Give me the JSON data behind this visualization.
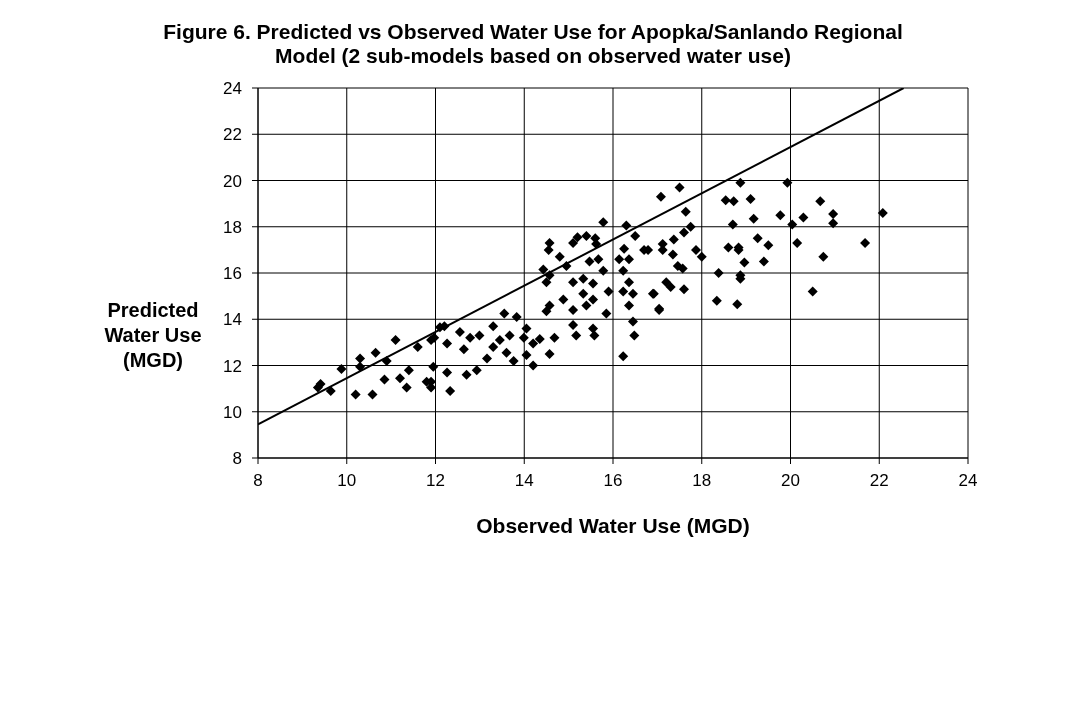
{
  "chart_data": {
    "type": "scatter",
    "title": "Figure 6. Predicted vs Observed Water Use for Apopka/Sanlando Regional Model (2 sub-models based on observed water use)",
    "xlabel": "Observed Water Use (MGD)",
    "ylabel": "Predicted Water Use (MGD)",
    "xlim": [
      8,
      24
    ],
    "xticks": [
      8,
      10,
      12,
      14,
      16,
      18,
      20,
      22,
      24
    ],
    "ylim": [
      8,
      24
    ],
    "yticks": [
      8,
      10,
      12,
      14,
      16,
      18,
      20,
      22,
      24
    ],
    "grid": true,
    "legend": false,
    "marker": "diamond",
    "series": [
      {
        "color": "#000000",
        "x": [
          9.41,
          9.64,
          9.35,
          9.88,
          10.2,
          10.58,
          10.3,
          10.3,
          10.65,
          10.85,
          10.9,
          11.1,
          11.2,
          11.35,
          11.4,
          11.6,
          11.8,
          11.9,
          11.95,
          11.9,
          12.1,
          15.78,
          16.3,
          16.5,
          14.57,
          14.55,
          15.2,
          15.1,
          15.4,
          15.6,
          15.62,
          16.25,
          16.7,
          14.8,
          14.95,
          15.47,
          15.67,
          16.14,
          16.36,
          14.43,
          14.57,
          15.78,
          16.23,
          14.5,
          15.1,
          15.33,
          15.55,
          15.9,
          16.36,
          16.45,
          16.23,
          16.9,
          17.04,
          15.33,
          15.55,
          14.88,
          14.57,
          14.5,
          15.1,
          15.4,
          15.85,
          16.36,
          16.45,
          16.48,
          15.1,
          15.17,
          15.55,
          15.58,
          16.23,
          14.57,
          14.68,
          14.35,
          14.2,
          14.05,
          13.83,
          13.55,
          14.05,
          13.67,
          13.3,
          12.99,
          12.78,
          12.55,
          12.2,
          11.97,
          12.26,
          12.64,
          13.3,
          13.6,
          13.76,
          13.16,
          12.93,
          12.7,
          12.26,
          11.9,
          12.33,
          13.99,
          14.2,
          13.45,
          17.5,
          17.08,
          18.87,
          19.93,
          18.54,
          18.72,
          19.1,
          20.67,
          17.64,
          19.17,
          19.77,
          20.29,
          20.96,
          20.96,
          22.08,
          20.04,
          18.7,
          17.75,
          17.6,
          17.37,
          17.12,
          17.12,
          16.79,
          17.35,
          17.87,
          18.0,
          18.6,
          18.83,
          18.83,
          19.26,
          19.5,
          20.15,
          21.68,
          20.74,
          19.4,
          18.96,
          17.46,
          17.57,
          18.38,
          18.87,
          18.87,
          17.2,
          17.3,
          17.6,
          16.92,
          20.5,
          17.04,
          18.34,
          18.8
        ],
        "values": [
          11.2,
          10.9,
          11.05,
          11.85,
          10.75,
          10.75,
          12.3,
          11.95,
          12.55,
          11.4,
          12.2,
          13.1,
          11.45,
          11.05,
          11.8,
          12.8,
          11.3,
          11.05,
          11.95,
          13.1,
          13.65,
          18.2,
          18.05,
          17.6,
          17.3,
          17.0,
          17.55,
          17.3,
          17.6,
          17.5,
          17.25,
          17.05,
          17.0,
          16.7,
          16.3,
          16.5,
          16.6,
          16.6,
          16.6,
          16.15,
          15.9,
          16.1,
          16.1,
          15.6,
          15.6,
          15.75,
          15.55,
          15.2,
          15.6,
          15.1,
          15.2,
          15.1,
          14.45,
          15.1,
          14.85,
          14.85,
          14.6,
          14.35,
          14.4,
          14.6,
          14.25,
          14.6,
          13.9,
          13.3,
          13.75,
          13.3,
          13.6,
          13.3,
          12.4,
          12.5,
          13.2,
          13.15,
          12.0,
          12.45,
          14.1,
          14.25,
          13.6,
          13.3,
          13.7,
          13.3,
          13.2,
          13.45,
          13.7,
          13.2,
          12.95,
          12.7,
          12.8,
          12.55,
          12.2,
          12.3,
          11.8,
          11.6,
          11.7,
          11.3,
          10.9,
          13.2,
          12.95,
          13.1,
          19.7,
          19.3,
          19.9,
          19.9,
          19.15,
          19.1,
          19.2,
          19.1,
          18.65,
          18.35,
          18.5,
          18.4,
          18.55,
          18.15,
          18.6,
          18.1,
          18.1,
          18.0,
          17.75,
          17.45,
          17.25,
          17.0,
          17.0,
          16.8,
          17.0,
          16.7,
          17.1,
          17.1,
          17.0,
          17.5,
          17.2,
          17.3,
          17.3,
          16.7,
          16.5,
          16.45,
          16.3,
          16.2,
          16.0,
          15.75,
          15.9,
          15.6,
          15.4,
          15.3,
          15.1,
          15.2,
          14.4,
          14.8,
          14.65
        ]
      },
      {
        "type": "line",
        "color": "#000000",
        "marker": "none",
        "line_style": "solid",
        "x": [
          8,
          22.55
        ],
        "values": [
          9.45,
          24
        ]
      }
    ]
  }
}
